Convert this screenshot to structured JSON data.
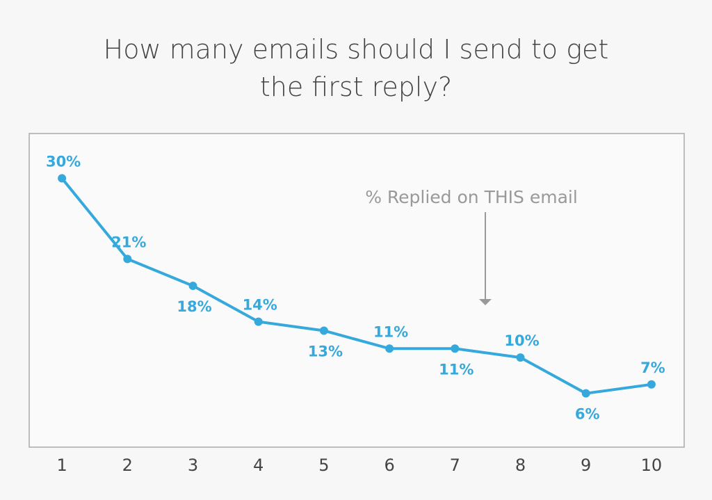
{
  "chart_data": {
    "type": "line",
    "title": "How many emails should I send to get the first reply?",
    "annotation": "% Replied on THIS email",
    "categories": [
      "1",
      "2",
      "3",
      "4",
      "5",
      "6",
      "7",
      "8",
      "9",
      "10"
    ],
    "series": [
      {
        "color": "#35a8dc",
        "values": [
          30,
          21,
          18,
          14,
          13,
          11,
          11,
          10,
          6,
          7
        ],
        "value_labels": [
          "30%",
          "21%",
          "18%",
          "14%",
          "13%",
          "11%",
          "11%",
          "10%",
          "6%",
          "7%"
        ]
      }
    ],
    "ylim": [
      0,
      35
    ]
  }
}
